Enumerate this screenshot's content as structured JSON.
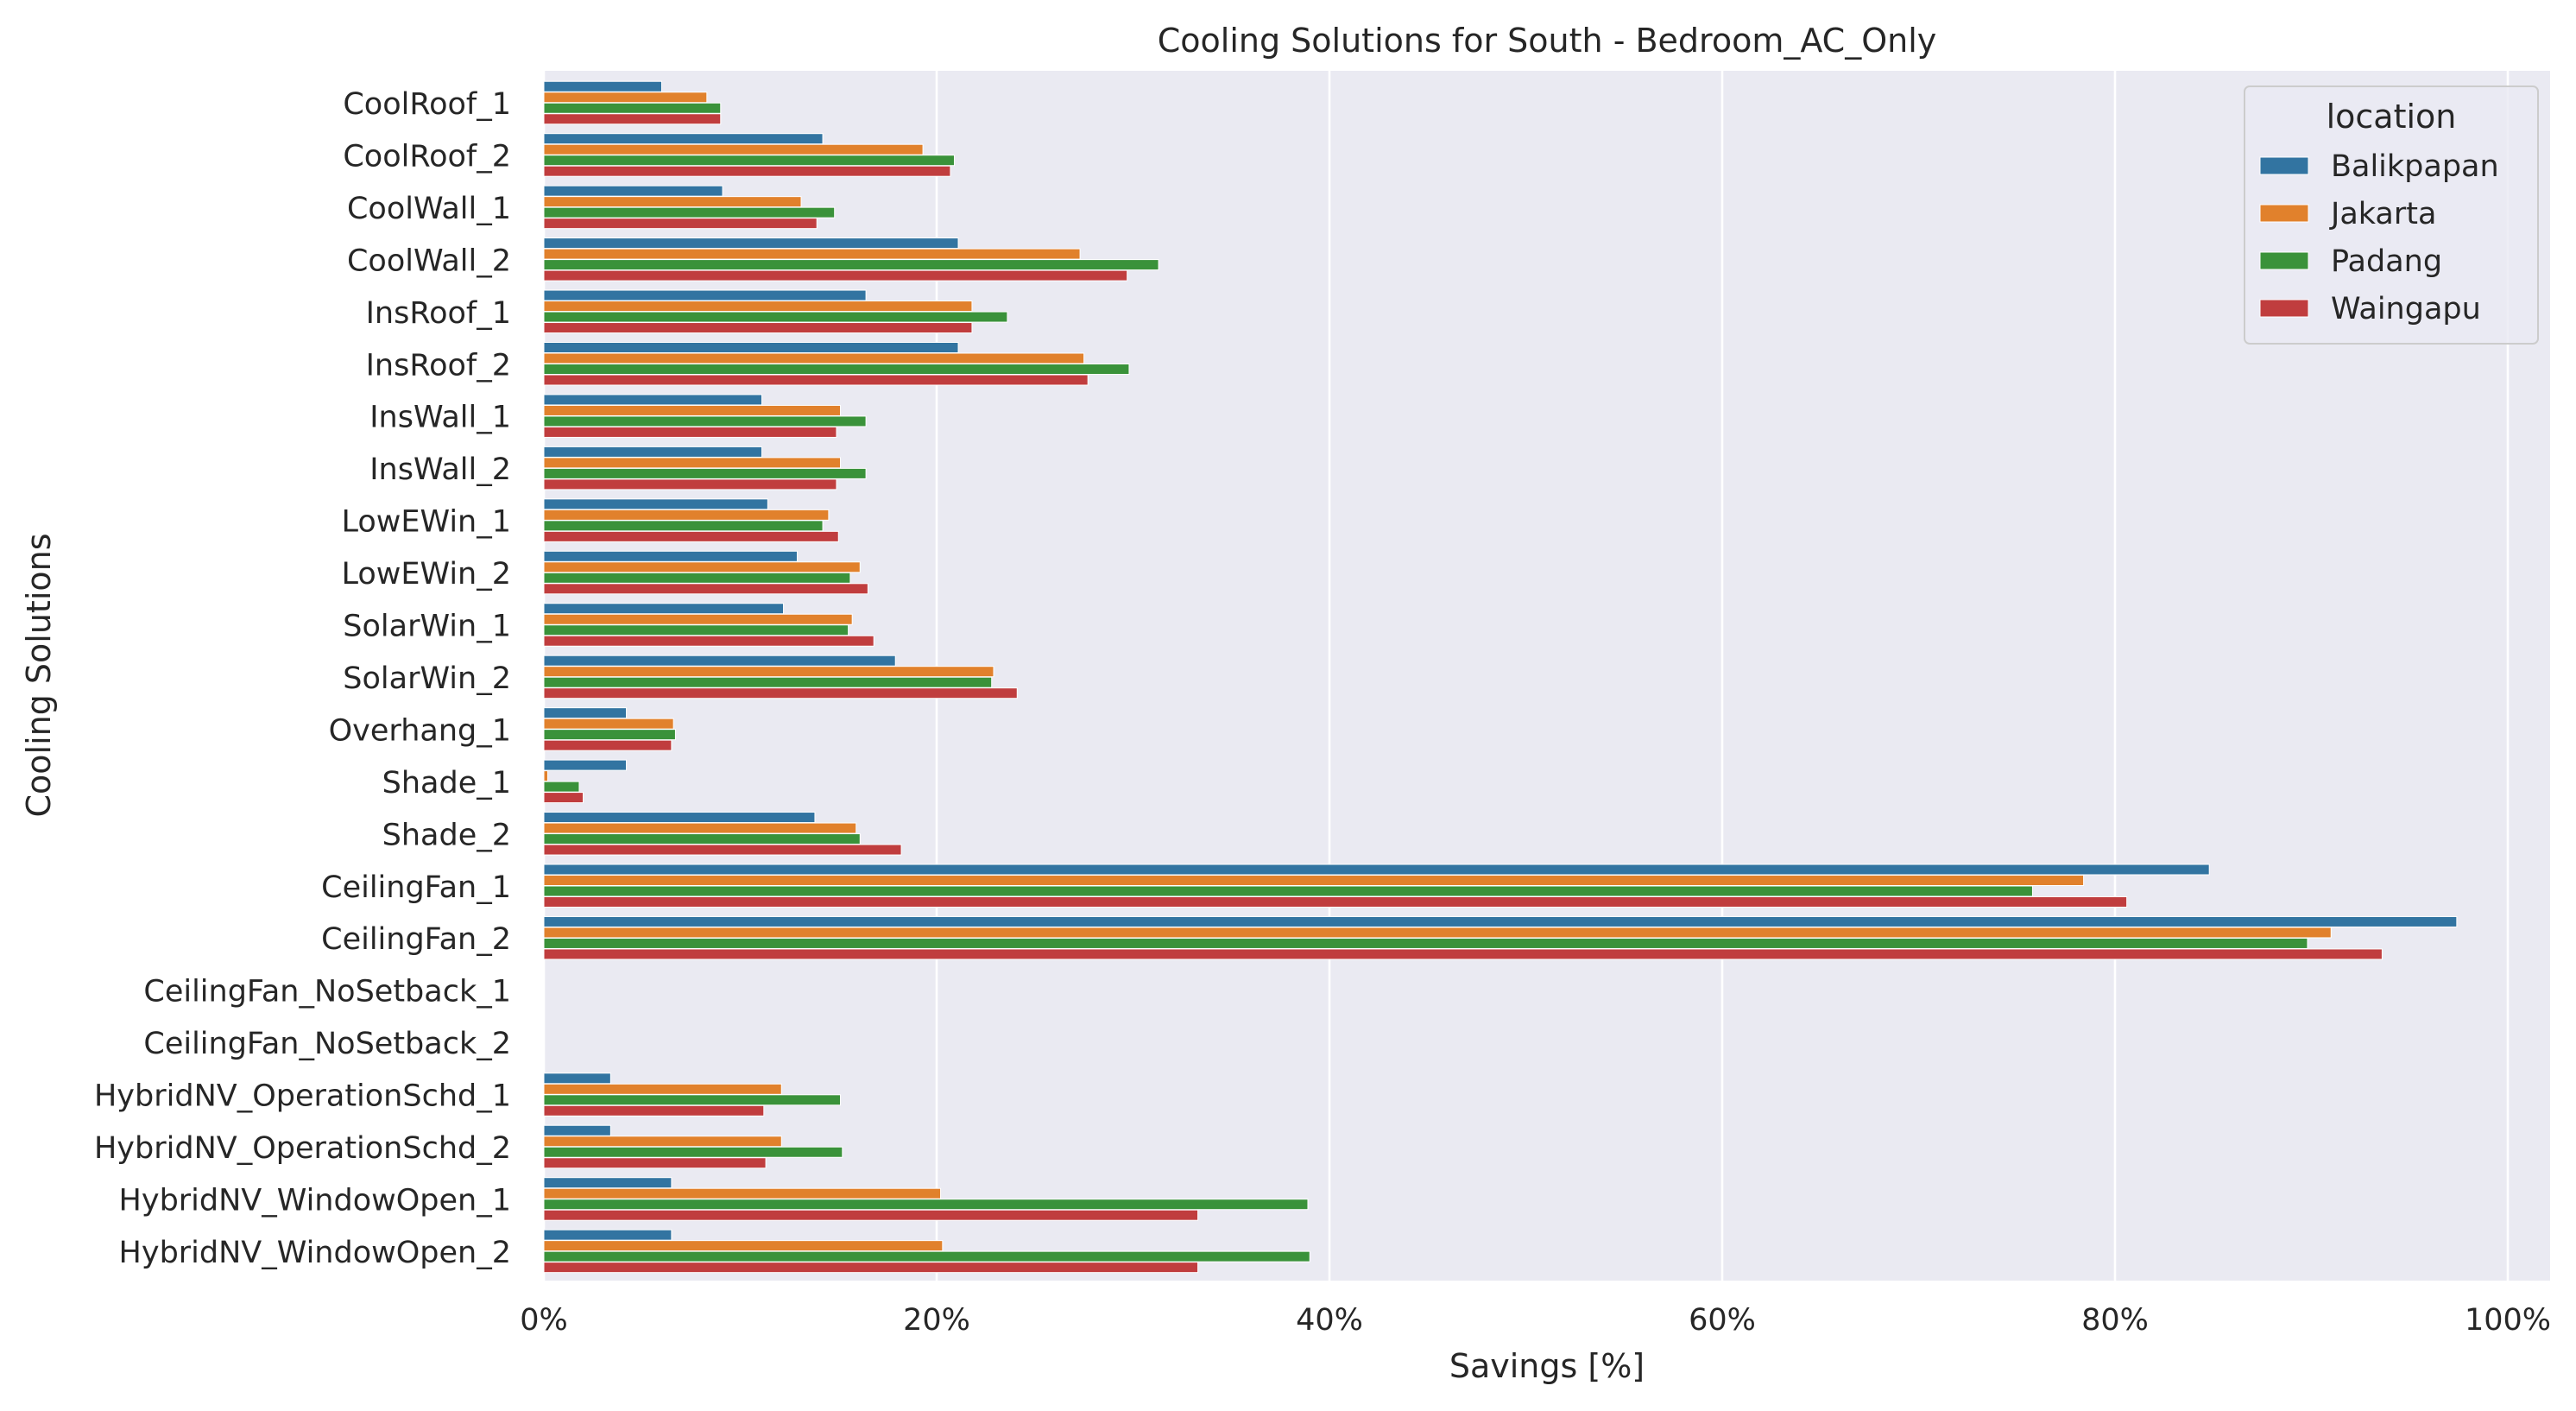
{
  "chart_data": {
    "type": "bar",
    "orientation": "horizontal",
    "title": "Cooling Solutions for South - Bedroom_AC_Only",
    "xlabel": "Savings [%]",
    "ylabel": "Cooling Solutions",
    "xlim": [
      0,
      102
    ],
    "xticks": [
      0,
      20,
      40,
      60,
      80,
      100
    ],
    "xtick_labels": [
      "0%",
      "20%",
      "40%",
      "60%",
      "80%",
      "100%"
    ],
    "grid": true,
    "legend_title": "location",
    "legend_position": "top-right",
    "categories": [
      "CoolRoof_1",
      "CoolRoof_2",
      "CoolWall_1",
      "CoolWall_2",
      "InsRoof_1",
      "InsRoof_2",
      "InsWall_1",
      "InsWall_2",
      "LowEWin_1",
      "LowEWin_2",
      "SolarWin_1",
      "SolarWin_2",
      "Overhang_1",
      "Shade_1",
      "Shade_2",
      "CeilingFan_1",
      "CeilingFan_2",
      "CeilingFan_NoSetback_1",
      "CeilingFan_NoSetback_2",
      "HybridNV_OperationSchd_1",
      "HybridNV_OperationSchd_2",
      "HybridNV_WindowOpen_1",
      "HybridNV_WindowOpen_2"
    ],
    "series": [
      {
        "name": "Balikpapan",
        "color": "#3274a1",
        "values": [
          6.0,
          14.2,
          9.1,
          21.1,
          16.4,
          21.1,
          11.1,
          11.1,
          11.4,
          12.9,
          12.2,
          17.9,
          4.2,
          4.2,
          13.8,
          84.8,
          97.4,
          0,
          0,
          3.4,
          3.4,
          6.5,
          6.5
        ]
      },
      {
        "name": "Jakarta",
        "color": "#e1812c",
        "values": [
          8.3,
          19.3,
          13.1,
          27.3,
          21.8,
          27.5,
          15.1,
          15.1,
          14.5,
          16.1,
          15.7,
          22.9,
          6.6,
          0.2,
          15.9,
          78.4,
          91.0,
          0,
          0,
          12.1,
          12.1,
          20.2,
          20.3
        ]
      },
      {
        "name": "Padang",
        "color": "#3a923a",
        "values": [
          9.0,
          20.9,
          14.8,
          31.3,
          23.6,
          29.8,
          16.4,
          16.4,
          14.2,
          15.6,
          15.5,
          22.8,
          6.7,
          1.8,
          16.1,
          75.8,
          89.8,
          0,
          0,
          15.1,
          15.2,
          38.9,
          39.0
        ]
      },
      {
        "name": "Waingapu",
        "color": "#c03d3e",
        "values": [
          9.0,
          20.7,
          13.9,
          29.7,
          21.8,
          27.7,
          14.9,
          14.9,
          15.0,
          16.5,
          16.8,
          24.1,
          6.5,
          2.0,
          18.2,
          80.6,
          93.6,
          0,
          0,
          11.2,
          11.3,
          33.3,
          33.3
        ]
      }
    ]
  }
}
